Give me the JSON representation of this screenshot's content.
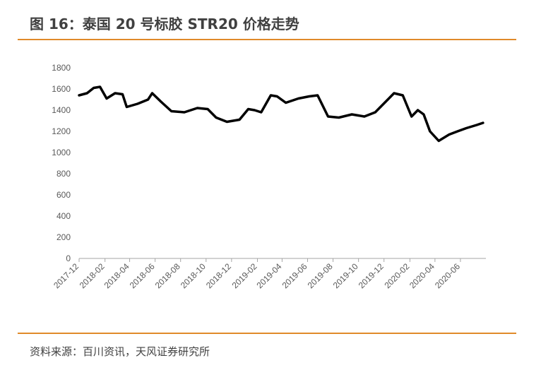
{
  "header": {
    "title": "图 16：泰国 20 号标胶 STR20 价格走势"
  },
  "footer": {
    "source": "资料来源：百川资讯，天风证券研究所"
  },
  "colors": {
    "accent": "#e08a2a",
    "line": "#000000",
    "text": "#404040"
  },
  "chart_data": {
    "type": "line",
    "title": "",
    "xlabel": "",
    "ylabel": "",
    "ylim": [
      0,
      1800
    ],
    "y_ticks": [
      0,
      200,
      400,
      600,
      800,
      1000,
      1200,
      1400,
      1600,
      1800
    ],
    "x_range": [
      "2017-12",
      "2020-08"
    ],
    "x_ticks": [
      "2017-12",
      "2018-02",
      "2018-04",
      "2018-06",
      "2018-08",
      "2018-10",
      "2018-12",
      "2019-02",
      "2019-04",
      "2019-06",
      "2019-08",
      "2019-10",
      "2019-12",
      "2020-02",
      "2020-04",
      "2020-06"
    ],
    "grid": false,
    "legend": "none",
    "series": [
      {
        "name": "",
        "x": [
          "2017-12-01",
          "2017-12-20",
          "2018-01-05",
          "2018-01-20",
          "2018-02-05",
          "2018-02-25",
          "2018-03-15",
          "2018-03-25",
          "2018-04-20",
          "2018-05-15",
          "2018-05-25",
          "2018-06-15",
          "2018-07-10",
          "2018-08-10",
          "2018-09-10",
          "2018-10-05",
          "2018-10-25",
          "2018-11-20",
          "2018-12-20",
          "2019-01-10",
          "2019-01-25",
          "2019-02-10",
          "2019-03-05",
          "2019-03-20",
          "2019-04-10",
          "2019-05-10",
          "2019-06-05",
          "2019-06-25",
          "2019-07-20",
          "2019-08-15",
          "2019-09-15",
          "2019-10-15",
          "2019-11-10",
          "2019-12-05",
          "2019-12-25",
          "2020-01-15",
          "2020-02-05",
          "2020-02-20",
          "2020-03-05",
          "2020-03-20",
          "2020-04-10",
          "2020-05-05",
          "2020-05-25",
          "2020-06-15",
          "2020-07-10",
          "2020-07-25"
        ],
        "values": [
          1540,
          1560,
          1610,
          1620,
          1510,
          1560,
          1550,
          1430,
          1460,
          1500,
          1560,
          1480,
          1390,
          1380,
          1420,
          1410,
          1330,
          1290,
          1310,
          1410,
          1400,
          1380,
          1540,
          1530,
          1470,
          1510,
          1530,
          1540,
          1340,
          1330,
          1360,
          1340,
          1380,
          1480,
          1560,
          1540,
          1340,
          1400,
          1360,
          1200,
          1110,
          1170,
          1200,
          1230,
          1260,
          1280
        ]
      }
    ]
  }
}
